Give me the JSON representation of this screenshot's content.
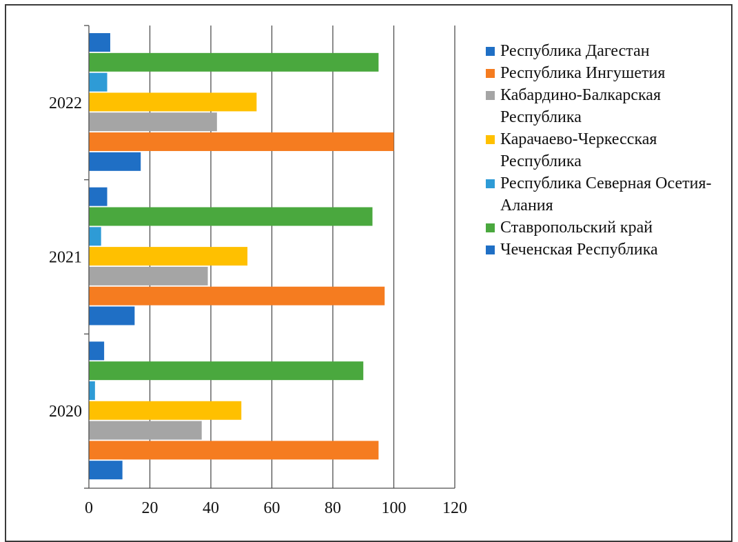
{
  "chart_data": {
    "type": "bar",
    "orientation": "horizontal",
    "categories": [
      "2020",
      "2021",
      "2022"
    ],
    "series": [
      {
        "name": "Республика Дагестан",
        "color": "#1f6fc5",
        "values": [
          5,
          6,
          7
        ]
      },
      {
        "name": "Республика Ингушетия",
        "color": "#f57c20",
        "values": [
          95,
          97,
          100
        ]
      },
      {
        "name": "Кабардино-Балкарская Республика",
        "color": "#a5a5a5",
        "values": [
          37,
          39,
          42
        ]
      },
      {
        "name": "Карачаево-Черкесская Республика",
        "color": "#ffc000",
        "values": [
          50,
          52,
          55
        ]
      },
      {
        "name": "Республика Северная Осетия-Алания",
        "color": "#2e9bd6",
        "values": [
          2,
          4,
          6
        ]
      },
      {
        "name": "Ставропольский край",
        "color": "#4aa83e",
        "values": [
          90,
          93,
          95
        ]
      },
      {
        "name": "Чеченская Республика",
        "color": "#1f6fc5",
        "values": [
          11,
          15,
          17
        ]
      }
    ],
    "bar_order_top_to_bottom": [
      "Республика Дагестан",
      "Ставропольский край",
      "Республика Северная Осетия-Алания",
      "Карачаево-Черкесская Республика",
      "Кабардино-Балкарская Республика",
      "Республика Ингушетия",
      "Чеченская Республика"
    ],
    "xticks": [
      "0",
      "20",
      "40",
      "60",
      "80",
      "100",
      "120"
    ],
    "xlim": [
      0,
      120
    ],
    "grid": "vertical",
    "legend_position": "right",
    "title": "",
    "xlabel": "",
    "ylabel": ""
  },
  "legend": [
    {
      "label": "Республика Дагестан",
      "color": "#1f6fc5"
    },
    {
      "label": "Республика Ингушетия",
      "color": "#f57c20"
    },
    {
      "label": "Кабардино-Балкарская Республика",
      "color": "#a5a5a5"
    },
    {
      "label": "Карачаево-Черкесская Республика",
      "color": "#ffc000"
    },
    {
      "label": "Республика Северная Осетия-Алания",
      "color": "#2e9bd6"
    },
    {
      "label": "Ставропольский край",
      "color": "#4aa83e"
    },
    {
      "label": "Чеченская Республика",
      "color": "#1f6fc5"
    }
  ]
}
